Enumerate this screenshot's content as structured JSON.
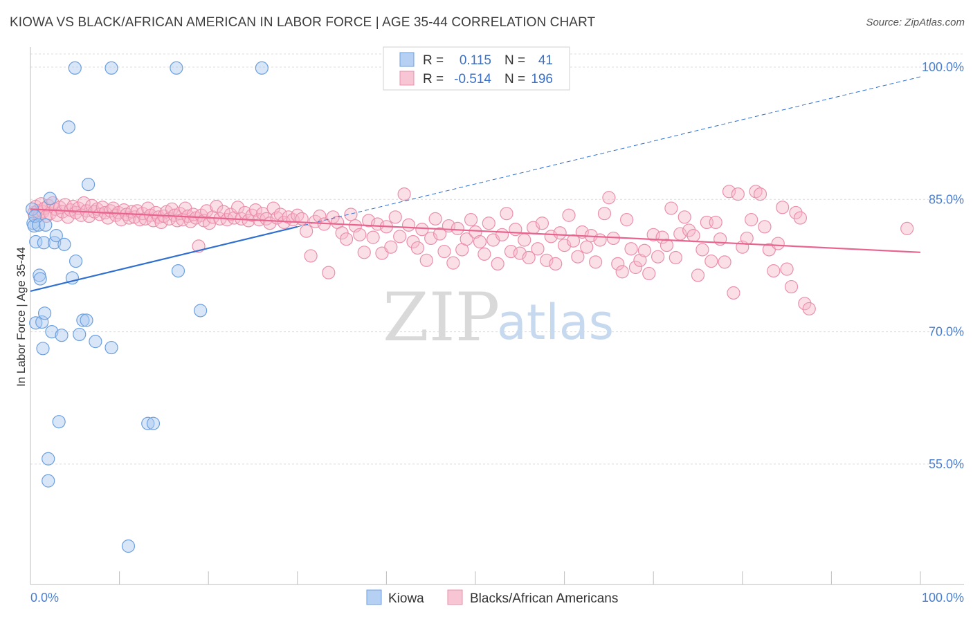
{
  "title": "KIOWA VS BLACK/AFRICAN AMERICAN IN LABOR FORCE | AGE 35-44 CORRELATION CHART",
  "source": "Source: ZipAtlas.com",
  "watermark": {
    "zip": "ZIP",
    "atlas": "atlas"
  },
  "colors": {
    "kiowa_fill": "#a9c8f0",
    "kiowa_stroke": "#6a9fdf",
    "kiowa_line": "#2f6fcf",
    "black_fill": "#f6b7c9",
    "black_stroke": "#ea8fab",
    "black_line": "#e8638d",
    "grid": "#dcdcdc",
    "axis_text": "#4a7fd0"
  },
  "legend": {
    "rows": [
      {
        "r_label": "R =",
        "r_value": "0.115",
        "n_label": "N =",
        "n_value": "41"
      },
      {
        "r_label": "R =",
        "r_value": "-0.514",
        "n_label": "N =",
        "n_value": "196"
      }
    ]
  },
  "bottom_legend": [
    "Kiowa",
    "Blacks/African Americans"
  ],
  "chart_data": {
    "type": "scatter",
    "title": "KIOWA VS BLACK/AFRICAN AMERICAN IN LABOR FORCE | AGE 35-44 CORRELATION CHART",
    "xlabel": "",
    "ylabel": "In Labor Force | Age 35-44",
    "xlim": [
      0,
      100
    ],
    "ylim": [
      40,
      102
    ],
    "x_tick_labels": [
      "0.0%",
      "100.0%"
    ],
    "y_ticks": [
      55,
      70,
      85,
      100
    ],
    "y_tick_labels": [
      "55.0%",
      "70.0%",
      "85.0%",
      "100.0%"
    ],
    "grid": true,
    "legend_position": "top-center",
    "series": [
      {
        "name": "Kiowa",
        "trend": {
          "x": [
            0,
            30
          ],
          "y": [
            74.6,
            81.9
          ],
          "extended_to": [
            100,
            98.9
          ]
        },
        "points": [
          [
            0.2,
            83.9
          ],
          [
            0.3,
            82.3
          ],
          [
            0.4,
            82.0
          ],
          [
            0.5,
            83.1
          ],
          [
            0.6,
            80.2
          ],
          [
            0.6,
            71.0
          ],
          [
            0.9,
            82.1
          ],
          [
            1.0,
            76.4
          ],
          [
            1.1,
            76.0
          ],
          [
            1.3,
            71.1
          ],
          [
            1.4,
            68.1
          ],
          [
            1.5,
            80.1
          ],
          [
            1.6,
            72.1
          ],
          [
            1.7,
            82.1
          ],
          [
            2.0,
            55.6
          ],
          [
            2.0,
            53.1
          ],
          [
            2.2,
            85.1
          ],
          [
            2.4,
            70.0
          ],
          [
            2.7,
            80.1
          ],
          [
            2.9,
            80.9
          ],
          [
            3.2,
            59.8
          ],
          [
            3.5,
            69.6
          ],
          [
            3.8,
            79.9
          ],
          [
            4.3,
            93.2
          ],
          [
            4.7,
            76.1
          ],
          [
            5.0,
            99.9
          ],
          [
            5.1,
            78.0
          ],
          [
            5.5,
            69.7
          ],
          [
            5.9,
            71.3
          ],
          [
            6.3,
            71.3
          ],
          [
            6.5,
            86.7
          ],
          [
            7.3,
            68.9
          ],
          [
            9.1,
            99.9
          ],
          [
            9.1,
            68.2
          ],
          [
            11.0,
            45.7
          ],
          [
            13.2,
            59.6
          ],
          [
            13.8,
            59.6
          ],
          [
            16.4,
            99.9
          ],
          [
            16.6,
            76.9
          ],
          [
            19.1,
            72.4
          ],
          [
            26.0,
            99.9
          ]
        ]
      },
      {
        "name": "Blacks/African Americans",
        "trend": {
          "x": [
            0,
            100
          ],
          "y": [
            83.9,
            79.0
          ]
        },
        "points": [
          [
            0.4,
            83.5
          ],
          [
            0.6,
            84.2
          ],
          [
            0.8,
            83.7
          ],
          [
            1.0,
            83.2
          ],
          [
            1.2,
            84.5
          ],
          [
            1.4,
            83.6
          ],
          [
            1.6,
            84.0
          ],
          [
            1.8,
            83.1
          ],
          [
            2.0,
            84.3
          ],
          [
            2.2,
            83.4
          ],
          [
            2.5,
            84.6
          ],
          [
            2.8,
            83.9
          ],
          [
            3.0,
            83.2
          ],
          [
            3.3,
            84.1
          ],
          [
            3.6,
            83.6
          ],
          [
            3.9,
            84.4
          ],
          [
            4.2,
            83.0
          ],
          [
            4.5,
            83.8
          ],
          [
            4.8,
            84.2
          ],
          [
            5.1,
            83.5
          ],
          [
            5.4,
            84.0
          ],
          [
            5.7,
            83.2
          ],
          [
            6.0,
            84.6
          ],
          [
            6.3,
            83.7
          ],
          [
            6.6,
            83.1
          ],
          [
            6.9,
            84.3
          ],
          [
            7.2,
            83.6
          ],
          [
            7.5,
            83.9
          ],
          [
            7.8,
            83.3
          ],
          [
            8.1,
            84.1
          ],
          [
            8.4,
            83.5
          ],
          [
            8.7,
            82.9
          ],
          [
            9.0,
            83.7
          ],
          [
            9.3,
            84.0
          ],
          [
            9.6,
            83.2
          ],
          [
            9.9,
            83.5
          ],
          [
            10.2,
            82.7
          ],
          [
            10.5,
            83.8
          ],
          [
            10.8,
            83.3
          ],
          [
            11.1,
            82.9
          ],
          [
            11.4,
            83.6
          ],
          [
            11.7,
            83.0
          ],
          [
            12.0,
            83.7
          ],
          [
            12.3,
            82.7
          ],
          [
            12.6,
            83.4
          ],
          [
            12.9,
            82.8
          ],
          [
            13.2,
            84.0
          ],
          [
            13.5,
            83.2
          ],
          [
            13.8,
            82.6
          ],
          [
            14.1,
            83.5
          ],
          [
            14.4,
            83.0
          ],
          [
            14.7,
            82.4
          ],
          [
            15.0,
            83.1
          ],
          [
            15.3,
            83.6
          ],
          [
            15.6,
            82.8
          ],
          [
            15.9,
            83.9
          ],
          [
            16.2,
            83.2
          ],
          [
            16.5,
            82.6
          ],
          [
            16.8,
            83.4
          ],
          [
            17.1,
            82.7
          ],
          [
            17.4,
            84.0
          ],
          [
            17.7,
            83.1
          ],
          [
            18.0,
            82.5
          ],
          [
            18.3,
            83.3
          ],
          [
            18.6,
            82.9
          ],
          [
            18.9,
            79.7
          ],
          [
            19.2,
            83.2
          ],
          [
            19.5,
            82.6
          ],
          [
            19.8,
            83.7
          ],
          [
            20.1,
            82.3
          ],
          [
            20.5,
            83.0
          ],
          [
            20.9,
            84.2
          ],
          [
            21.3,
            82.8
          ],
          [
            21.7,
            83.6
          ],
          [
            22.1,
            82.7
          ],
          [
            22.5,
            83.3
          ],
          [
            22.9,
            82.9
          ],
          [
            23.3,
            84.1
          ],
          [
            23.7,
            82.8
          ],
          [
            24.1,
            83.5
          ],
          [
            24.5,
            82.6
          ],
          [
            24.9,
            83.2
          ],
          [
            25.3,
            83.8
          ],
          [
            25.7,
            82.7
          ],
          [
            26.1,
            83.4
          ],
          [
            26.5,
            82.8
          ],
          [
            26.9,
            82.3
          ],
          [
            27.3,
            84.0
          ],
          [
            27.7,
            82.9
          ],
          [
            28.1,
            83.3
          ],
          [
            28.5,
            82.4
          ],
          [
            29.0,
            83.0
          ],
          [
            29.5,
            82.7
          ],
          [
            30.0,
            83.2
          ],
          [
            30.5,
            82.8
          ],
          [
            31.0,
            81.4
          ],
          [
            31.5,
            78.6
          ],
          [
            32.0,
            82.5
          ],
          [
            32.5,
            83.1
          ],
          [
            33.0,
            82.2
          ],
          [
            33.5,
            76.7
          ],
          [
            34.0,
            83.0
          ],
          [
            34.5,
            82.4
          ],
          [
            35.0,
            81.2
          ],
          [
            35.5,
            80.5
          ],
          [
            36.0,
            83.3
          ],
          [
            36.5,
            82.0
          ],
          [
            37.0,
            81.0
          ],
          [
            37.5,
            79.0
          ],
          [
            38.0,
            82.6
          ],
          [
            38.5,
            80.7
          ],
          [
            39.0,
            82.2
          ],
          [
            39.5,
            78.9
          ],
          [
            40.0,
            81.9
          ],
          [
            40.5,
            79.6
          ],
          [
            41.0,
            83.0
          ],
          [
            41.5,
            80.8
          ],
          [
            42.0,
            85.6
          ],
          [
            42.5,
            82.1
          ],
          [
            43.0,
            80.2
          ],
          [
            43.5,
            79.5
          ],
          [
            44.0,
            81.6
          ],
          [
            44.5,
            78.1
          ],
          [
            45.0,
            80.6
          ],
          [
            45.5,
            82.8
          ],
          [
            46.0,
            81.1
          ],
          [
            46.5,
            79.1
          ],
          [
            47.0,
            82.0
          ],
          [
            47.5,
            77.8
          ],
          [
            48.0,
            81.7
          ],
          [
            48.5,
            79.3
          ],
          [
            49.0,
            80.5
          ],
          [
            49.5,
            82.7
          ],
          [
            50.0,
            81.3
          ],
          [
            50.5,
            80.2
          ],
          [
            51.0,
            78.8
          ],
          [
            51.5,
            82.3
          ],
          [
            52.0,
            80.4
          ],
          [
            52.5,
            77.7
          ],
          [
            53.0,
            81.0
          ],
          [
            53.5,
            83.4
          ],
          [
            54.0,
            79.1
          ],
          [
            54.5,
            81.6
          ],
          [
            55.0,
            78.9
          ],
          [
            55.5,
            80.4
          ],
          [
            56.0,
            78.4
          ],
          [
            56.5,
            81.8
          ],
          [
            57.0,
            79.4
          ],
          [
            57.5,
            82.3
          ],
          [
            58.0,
            78.1
          ],
          [
            58.5,
            80.8
          ],
          [
            59.0,
            77.7
          ],
          [
            59.5,
            81.2
          ],
          [
            60.0,
            79.8
          ],
          [
            60.5,
            83.2
          ],
          [
            61.0,
            80.3
          ],
          [
            61.5,
            78.5
          ],
          [
            62.0,
            81.3
          ],
          [
            62.5,
            79.6
          ],
          [
            63.0,
            80.9
          ],
          [
            63.5,
            77.9
          ],
          [
            64.0,
            80.4
          ],
          [
            64.5,
            83.4
          ],
          [
            65.0,
            85.2
          ],
          [
            65.5,
            80.6
          ],
          [
            66.0,
            77.7
          ],
          [
            66.5,
            76.8
          ],
          [
            67.0,
            82.7
          ],
          [
            67.5,
            79.4
          ],
          [
            68.0,
            77.3
          ],
          [
            68.5,
            78.1
          ],
          [
            69.0,
            79.2
          ],
          [
            69.5,
            76.6
          ],
          [
            70.0,
            81.0
          ],
          [
            70.5,
            78.5
          ],
          [
            71.0,
            80.7
          ],
          [
            71.5,
            79.8
          ],
          [
            72.0,
            84.0
          ],
          [
            72.5,
            78.4
          ],
          [
            73.0,
            81.1
          ],
          [
            73.5,
            83.0
          ],
          [
            74.0,
            81.5
          ],
          [
            74.5,
            80.9
          ],
          [
            75.0,
            76.4
          ],
          [
            75.5,
            79.3
          ],
          [
            76.0,
            82.4
          ],
          [
            76.5,
            78.0
          ],
          [
            77.0,
            82.4
          ],
          [
            77.5,
            80.5
          ],
          [
            78.0,
            77.9
          ],
          [
            78.5,
            85.9
          ],
          [
            79.0,
            74.4
          ],
          [
            79.5,
            85.6
          ],
          [
            80.0,
            79.6
          ],
          [
            80.5,
            80.6
          ],
          [
            81.0,
            82.7
          ],
          [
            81.5,
            85.9
          ],
          [
            82.0,
            85.6
          ],
          [
            82.5,
            81.9
          ],
          [
            83.0,
            79.3
          ],
          [
            83.5,
            76.9
          ],
          [
            84.0,
            80.0
          ],
          [
            84.5,
            84.1
          ],
          [
            85.0,
            77.1
          ],
          [
            85.5,
            75.1
          ],
          [
            86.0,
            83.5
          ],
          [
            86.5,
            82.9
          ],
          [
            87.0,
            73.2
          ],
          [
            87.5,
            72.6
          ],
          [
            98.5,
            81.7
          ]
        ]
      }
    ]
  }
}
